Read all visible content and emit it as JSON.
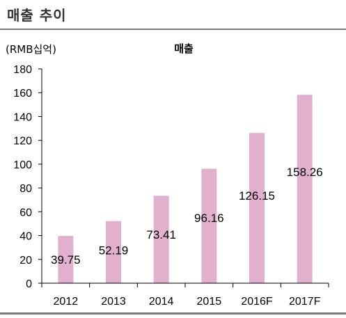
{
  "header": {
    "title": "매출 추이"
  },
  "chart_data": {
    "type": "bar",
    "title": "매출",
    "ylabel": "(RMB십억)",
    "xlabel": "",
    "categories": [
      "2012",
      "2013",
      "2014",
      "2015",
      "2016F",
      "2017F"
    ],
    "values": [
      39.75,
      52.19,
      73.41,
      96.16,
      126.15,
      158.26
    ],
    "data_labels": [
      "39.75",
      "52.19",
      "73.41",
      "96.16",
      "126.15",
      "158.26"
    ],
    "ylim": [
      0,
      180
    ],
    "yticks": [
      "0",
      "20",
      "40",
      "60",
      "80",
      "100",
      "120",
      "140",
      "160",
      "180"
    ],
    "bar_color": "#e0b0cc",
    "grid": false,
    "legend": "none"
  }
}
